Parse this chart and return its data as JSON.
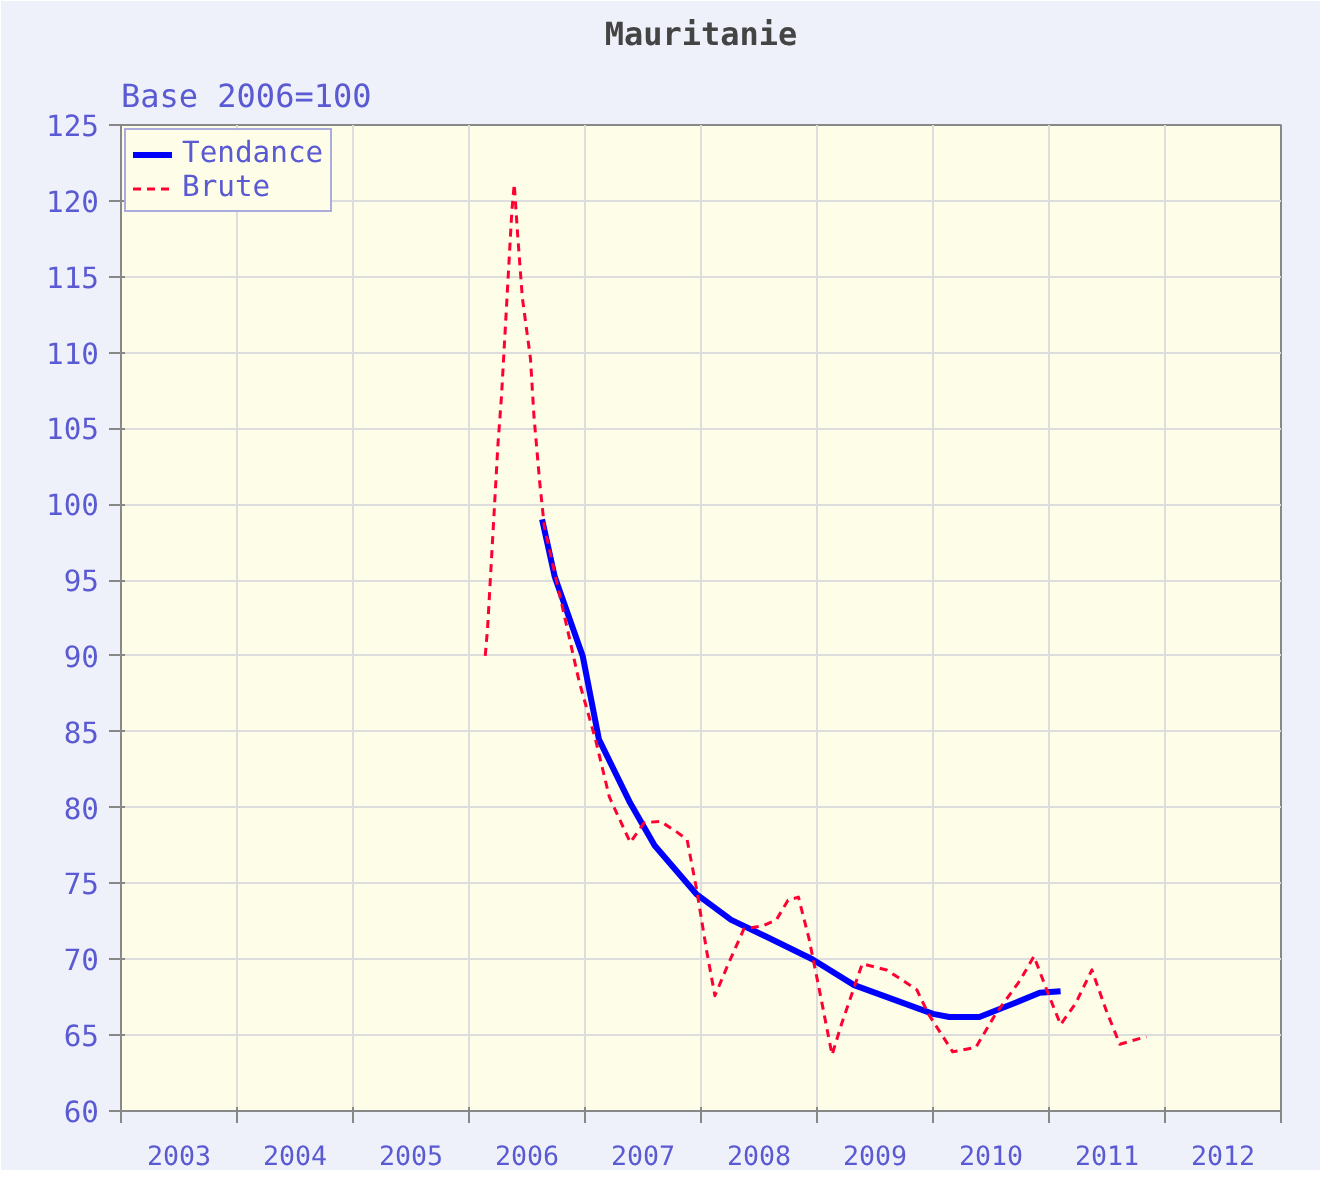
{
  "chart_data": {
    "type": "line",
    "title": "Mauritanie",
    "ylabel": "Base 2006=100",
    "xlim": [
      2003,
      2013
    ],
    "ylim": [
      60,
      125
    ],
    "xticks": [
      {
        "value": 2003,
        "label": null
      },
      {
        "value": 2003.5,
        "label": "2003"
      },
      {
        "value": 2004,
        "label": null
      },
      {
        "value": 2004.5,
        "label": "2004"
      },
      {
        "value": 2005,
        "label": null
      },
      {
        "value": 2005.5,
        "label": "2005"
      },
      {
        "value": 2006,
        "label": null
      },
      {
        "value": 2006.5,
        "label": "2006"
      },
      {
        "value": 2007,
        "label": null
      },
      {
        "value": 2007.5,
        "label": "2007"
      },
      {
        "value": 2008,
        "label": null
      },
      {
        "value": 2008.5,
        "label": "2008"
      },
      {
        "value": 2009,
        "label": null
      },
      {
        "value": 2009.5,
        "label": "2009"
      },
      {
        "value": 2010,
        "label": null
      },
      {
        "value": 2010.5,
        "label": "2010"
      },
      {
        "value": 2011,
        "label": null
      },
      {
        "value": 2011.5,
        "label": "2011"
      },
      {
        "value": 2012,
        "label": null
      },
      {
        "value": 2012.5,
        "label": "2012"
      },
      {
        "value": 2013,
        "label": null
      }
    ],
    "yticks": [
      60,
      65,
      70,
      75,
      80,
      85,
      90,
      95,
      100,
      105,
      110,
      115,
      120,
      125
    ],
    "grid": true,
    "legend": "top left",
    "series": [
      {
        "name": "Tendance",
        "color": "#0000ff",
        "line_style": "solid",
        "x": [
          2006.63,
          2006.74,
          2006.98,
          2007.12,
          2007.39,
          2007.6,
          2007.96,
          2008.26,
          2008.56,
          2008.96,
          2009.32,
          2010.0,
          2010.14,
          2010.4,
          2010.7,
          2010.92,
          2011.1
        ],
        "values": [
          99,
          95.2,
          90,
          84.5,
          80.3,
          77.5,
          74.3,
          72.6,
          71.5,
          70,
          68.3,
          66.4,
          66.2,
          66.2,
          67.1,
          67.8,
          67.9
        ]
      },
      {
        "name": "Brute",
        "color": "#ff0033",
        "line_style": "dashed",
        "x": [
          2006.14,
          2006.16,
          2006.25,
          2006.28,
          2006.37,
          2006.39,
          2006.42,
          2006.46,
          2006.53,
          2006.56,
          2006.61,
          2006.65,
          2006.95,
          2007.09,
          2007.21,
          2007.39,
          2007.51,
          2007.65,
          2007.79,
          2007.88,
          2007.96,
          2008.05,
          2008.12,
          2008.23,
          2008.37,
          2008.53,
          2008.65,
          2008.75,
          2008.84,
          2008.93,
          2009.02,
          2009.13,
          2009.21,
          2009.39,
          2009.6,
          2009.86,
          2009.96,
          2010.17,
          2010.37,
          2010.54,
          2010.75,
          2010.87,
          2011.0,
          2011.1,
          2011.23,
          2011.37,
          2011.49,
          2011.61,
          2011.7,
          2011.84
        ],
        "values": [
          90,
          91.8,
          104,
          107.1,
          119.4,
          121.1,
          117.7,
          113.6,
          109.6,
          105.8,
          101.4,
          98.5,
          88.3,
          84.5,
          80.7,
          77.7,
          79,
          79.1,
          78.4,
          77.9,
          74.7,
          70.5,
          67.6,
          69.6,
          72,
          72.2,
          72.6,
          73.9,
          74.1,
          71.4,
          68,
          63.7,
          65.7,
          69.7,
          69.3,
          68,
          66.4,
          63.9,
          64.2,
          66.4,
          68.6,
          70.2,
          67.6,
          65.7,
          67.1,
          69.3,
          66.7,
          64.4,
          64.6,
          64.9
        ]
      }
    ]
  }
}
